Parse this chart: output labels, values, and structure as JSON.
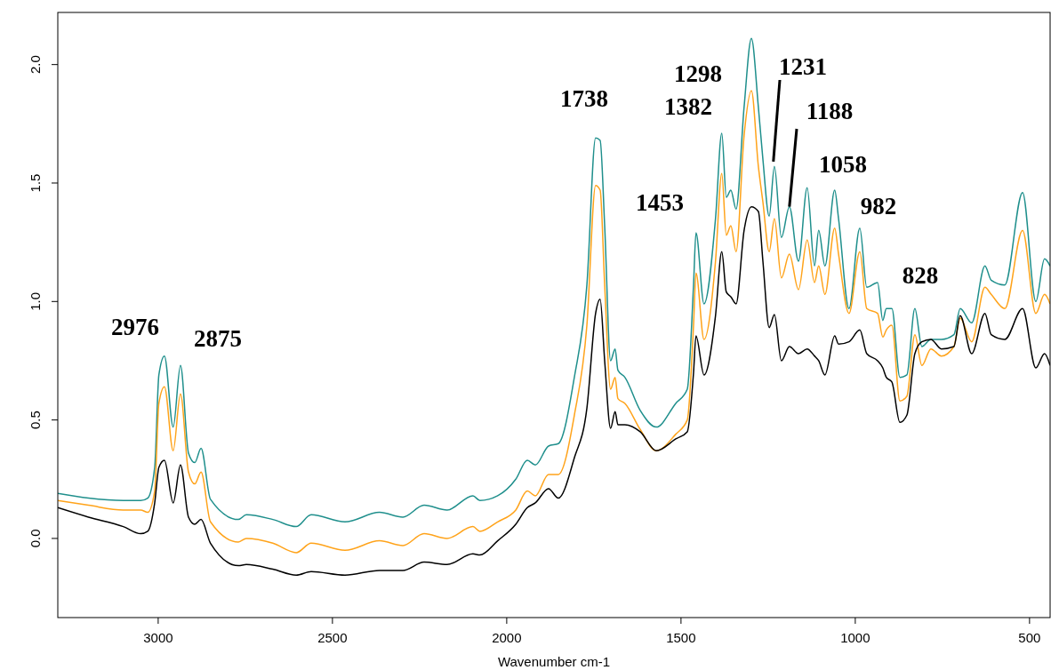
{
  "chart_data": {
    "type": "line",
    "xlabel": "Wavenumber cm-1",
    "xlim": [
      3288,
      441
    ],
    "xticks": [
      3000,
      2500,
      2000,
      1500,
      1000,
      500
    ],
    "ylim": [
      -0.334,
      2.22
    ],
    "yticks": [
      {
        "value": 0,
        "label": "0.0"
      },
      0.5,
      {
        "value": 1,
        "label": "1.0"
      },
      1.5,
      {
        "value": 2,
        "label": "2.0"
      }
    ],
    "x": [
      3288,
      3200,
      3100,
      3050,
      3030,
      3010,
      2998,
      2982,
      2957,
      2936,
      2913,
      2895,
      2877,
      2850,
      2770,
      2747,
      2671,
      2604,
      2561,
      2464,
      2365,
      2298,
      2237,
      2171,
      2097,
      2077,
      2026,
      1974,
      1941,
      1918,
      1880,
      1852,
      1806,
      1770,
      1745,
      1732,
      1719,
      1702,
      1689,
      1681,
      1661,
      1617,
      1571,
      1515,
      1482,
      1464,
      1457,
      1434,
      1401,
      1383,
      1370,
      1357,
      1342,
      1319,
      1298,
      1278,
      1265,
      1247,
      1232,
      1212,
      1189,
      1163,
      1138,
      1117,
      1105,
      1087,
      1059,
      1048,
      1018,
      987,
      967,
      936,
      921,
      911,
      895,
      872,
      852,
      829,
      809,
      783,
      753,
      717,
      699,
      666,
      628,
      610,
      571,
      520,
      482,
      457,
      441
    ],
    "series": [
      {
        "color": "#1f8f8c",
        "values": [
          0.19,
          0.17,
          0.16,
          0.16,
          0.17,
          0.3,
          0.69,
          0.77,
          0.47,
          0.73,
          0.36,
          0.32,
          0.38,
          0.165,
          0.08,
          0.1,
          0.08,
          0.05,
          0.1,
          0.07,
          0.11,
          0.09,
          0.14,
          0.12,
          0.18,
          0.16,
          0.18,
          0.25,
          0.33,
          0.31,
          0.39,
          0.4,
          0.68,
          1.07,
          1.69,
          1.68,
          1.32,
          0.75,
          0.8,
          0.71,
          0.68,
          0.54,
          0.47,
          0.57,
          0.63,
          1.07,
          1.29,
          0.99,
          1.35,
          1.71,
          1.44,
          1.47,
          1.39,
          1.82,
          2.11,
          1.82,
          1.6,
          1.36,
          1.57,
          1.27,
          1.4,
          1.17,
          1.48,
          1.15,
          1.3,
          1.15,
          1.47,
          1.35,
          0.97,
          1.31,
          1.06,
          1.08,
          0.92,
          0.97,
          0.97,
          0.68,
          0.69,
          0.97,
          0.81,
          0.84,
          0.84,
          0.86,
          0.97,
          0.91,
          1.15,
          1.09,
          1.07,
          1.46,
          1.0,
          1.18,
          1.15
        ]
      },
      {
        "color": "#ffa31a",
        "values": [
          0.16,
          0.14,
          0.12,
          0.12,
          0.11,
          0.2,
          0.57,
          0.64,
          0.37,
          0.61,
          0.28,
          0.23,
          0.28,
          0.07,
          -0.015,
          0.0,
          -0.02,
          -0.06,
          -0.02,
          -0.05,
          -0.01,
          -0.03,
          0.02,
          0.0,
          0.05,
          0.03,
          0.07,
          0.12,
          0.2,
          0.18,
          0.27,
          0.27,
          0.52,
          0.9,
          1.49,
          1.47,
          1.07,
          0.63,
          0.68,
          0.59,
          0.57,
          0.46,
          0.37,
          0.44,
          0.5,
          0.9,
          1.12,
          0.84,
          1.17,
          1.54,
          1.28,
          1.32,
          1.21,
          1.7,
          1.89,
          1.57,
          1.42,
          1.21,
          1.35,
          1.1,
          1.2,
          1.05,
          1.26,
          1.08,
          1.15,
          1.03,
          1.31,
          1.2,
          0.95,
          1.21,
          0.97,
          0.95,
          0.85,
          0.88,
          0.9,
          0.58,
          0.6,
          0.86,
          0.73,
          0.8,
          0.77,
          0.81,
          0.93,
          0.83,
          1.06,
          1.03,
          0.97,
          1.3,
          0.95,
          1.03,
          0.99
        ]
      },
      {
        "color": "#000000",
        "values": [
          0.13,
          0.09,
          0.05,
          0.02,
          0.03,
          0.15,
          0.3,
          0.33,
          0.15,
          0.31,
          0.09,
          0.06,
          0.08,
          -0.02,
          -0.115,
          -0.11,
          -0.13,
          -0.155,
          -0.14,
          -0.155,
          -0.135,
          -0.135,
          -0.1,
          -0.11,
          -0.065,
          -0.07,
          -0.01,
          0.06,
          0.13,
          0.15,
          0.21,
          0.17,
          0.34,
          0.55,
          0.95,
          1.01,
          0.75,
          0.465,
          0.535,
          0.48,
          0.48,
          0.45,
          0.37,
          0.42,
          0.45,
          0.7,
          0.855,
          0.69,
          0.94,
          1.21,
          1.04,
          1.02,
          0.99,
          1.3,
          1.4,
          1.38,
          1.17,
          0.89,
          0.945,
          0.75,
          0.81,
          0.78,
          0.8,
          0.77,
          0.75,
          0.69,
          0.855,
          0.82,
          0.83,
          0.88,
          0.78,
          0.75,
          0.72,
          0.68,
          0.66,
          0.49,
          0.52,
          0.78,
          0.83,
          0.84,
          0.8,
          0.81,
          0.94,
          0.78,
          0.95,
          0.86,
          0.84,
          0.97,
          0.72,
          0.78,
          0.73
        ]
      }
    ],
    "annotations": [
      "2976",
      "2875",
      "1738",
      "1298",
      "1382",
      {
        "text": "1231",
        "x": 1235,
        "y": 1.59
      },
      {
        "text": "1188",
        "x": 1189,
        "y": 1.4
      },
      "1453",
      "1058",
      "982",
      "828"
    ]
  }
}
